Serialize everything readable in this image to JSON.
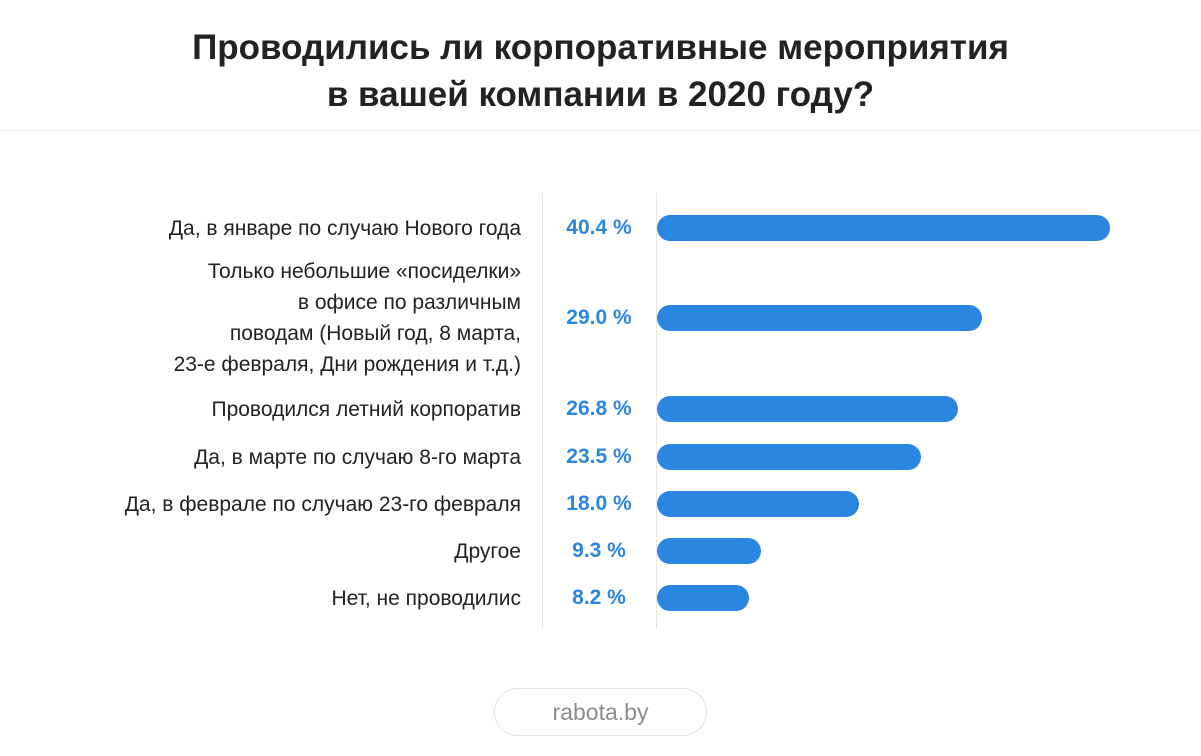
{
  "title": {
    "line1": "Проводились ли корпоративные мероприятия",
    "line2": "в вашей компании в 2020 году?"
  },
  "chart_data": {
    "type": "bar",
    "orientation": "horizontal",
    "categories": [
      "Да, в январе по случаю Нового года",
      "Только небольшие «посиделки» в офисе по различным поводам (Новый год, 8 марта, 23-е февраля, Дни рождения и т.д.)",
      "Проводился летний корпоратив",
      "Да, в марте по случаю 8-го марта",
      "Да, в феврале по случаю 23-го февраля",
      "Другое",
      "Нет, не проводилис"
    ],
    "category_lines": [
      [
        "Да, в январе по случаю Нового года"
      ],
      [
        "Только небольшие «посиделки»",
        "в офисе по различным",
        "поводам (Новый год, 8 марта,",
        "23-е февраля, Дни рождения и т.д.)"
      ],
      [
        "Проводился летний корпоратив"
      ],
      [
        "Да, в марте по случаю 8-го марта"
      ],
      [
        "Да, в феврале по случаю 23-го февраля"
      ],
      [
        "Другое"
      ],
      [
        "Нет, не проводилис"
      ]
    ],
    "values": [
      40.4,
      29.0,
      26.8,
      23.5,
      18.0,
      9.3,
      8.2
    ],
    "value_labels": [
      "40.4 %",
      "29.0 %",
      "26.8 %",
      "23.5 %",
      "18.0 %",
      "9.3 %",
      "8.2 %"
    ],
    "bar_color": "#2a86e0",
    "value_color": "#2a86e0",
    "xlim": [
      0,
      40.4
    ],
    "grid": false,
    "legend": "none"
  },
  "footer": {
    "watermark": "rabota.by"
  }
}
